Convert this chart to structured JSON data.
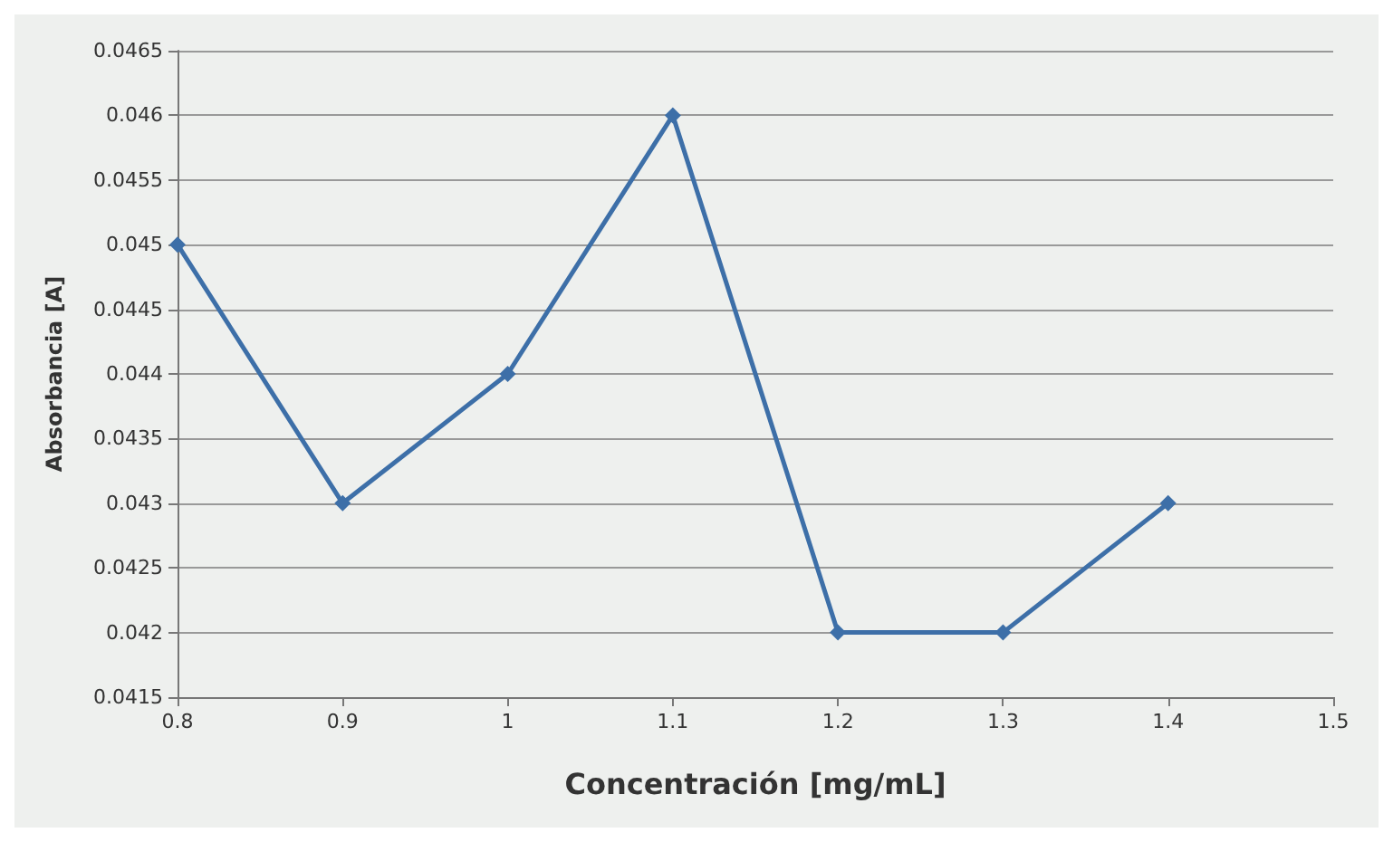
{
  "chart_data": {
    "type": "line",
    "xlabel": "Concentración [mg/mL]",
    "ylabel": "Absorbancia [A]",
    "x": [
      0.8,
      0.9,
      1,
      1.1,
      1.2,
      1.3,
      1.4
    ],
    "series": [
      {
        "color": "#3d6fa8",
        "values": [
          0.045,
          0.043,
          0.044,
          0.046,
          0.042,
          0.042,
          0.043
        ]
      }
    ],
    "xlim": [
      0.8,
      1.5
    ],
    "xticks": [
      0.8,
      0.9,
      1,
      1.1,
      1.2,
      1.3,
      1.4,
      1.5
    ],
    "ylim": [
      0.0415,
      0.0465
    ],
    "yticks": [
      0.0415,
      0.042,
      0.0425,
      0.043,
      0.0435,
      0.044,
      0.0445,
      0.045,
      0.0455,
      0.046,
      0.0465
    ],
    "grid": "y",
    "marker": "diamond",
    "line_style": "solid"
  }
}
